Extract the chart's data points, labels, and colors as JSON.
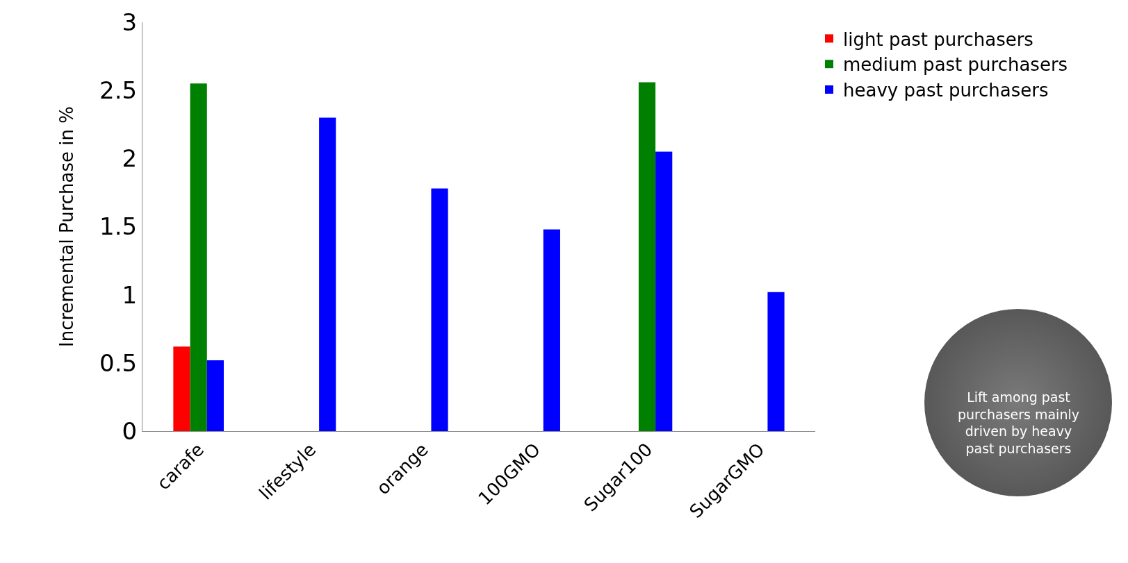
{
  "chart_data": {
    "type": "bar",
    "ylabel": "Incremental Purchase in %",
    "categories": [
      "carafe",
      "lifestyle",
      "orange",
      "100GMO",
      "Sugar100",
      "SugarGMO"
    ],
    "series": [
      {
        "name": "light past purchasers",
        "color": "#ff0000",
        "values": [
          0.62,
          null,
          null,
          null,
          null,
          null
        ]
      },
      {
        "name": "medium past purchasers",
        "color": "#008000",
        "values": [
          2.55,
          null,
          null,
          null,
          2.56,
          null
        ]
      },
      {
        "name": "heavy past purchasers",
        "color": "#0000ff",
        "values": [
          0.52,
          2.3,
          1.78,
          1.48,
          2.05,
          1.02
        ]
      }
    ],
    "ylim": [
      0,
      3
    ],
    "yticks": [
      0,
      0.5,
      1,
      1.5,
      2,
      2.5,
      3
    ],
    "grid": false,
    "legend": "top right",
    "annotations": [
      "Lift among past purchasers mainly driven by heavy past purchasers"
    ]
  }
}
